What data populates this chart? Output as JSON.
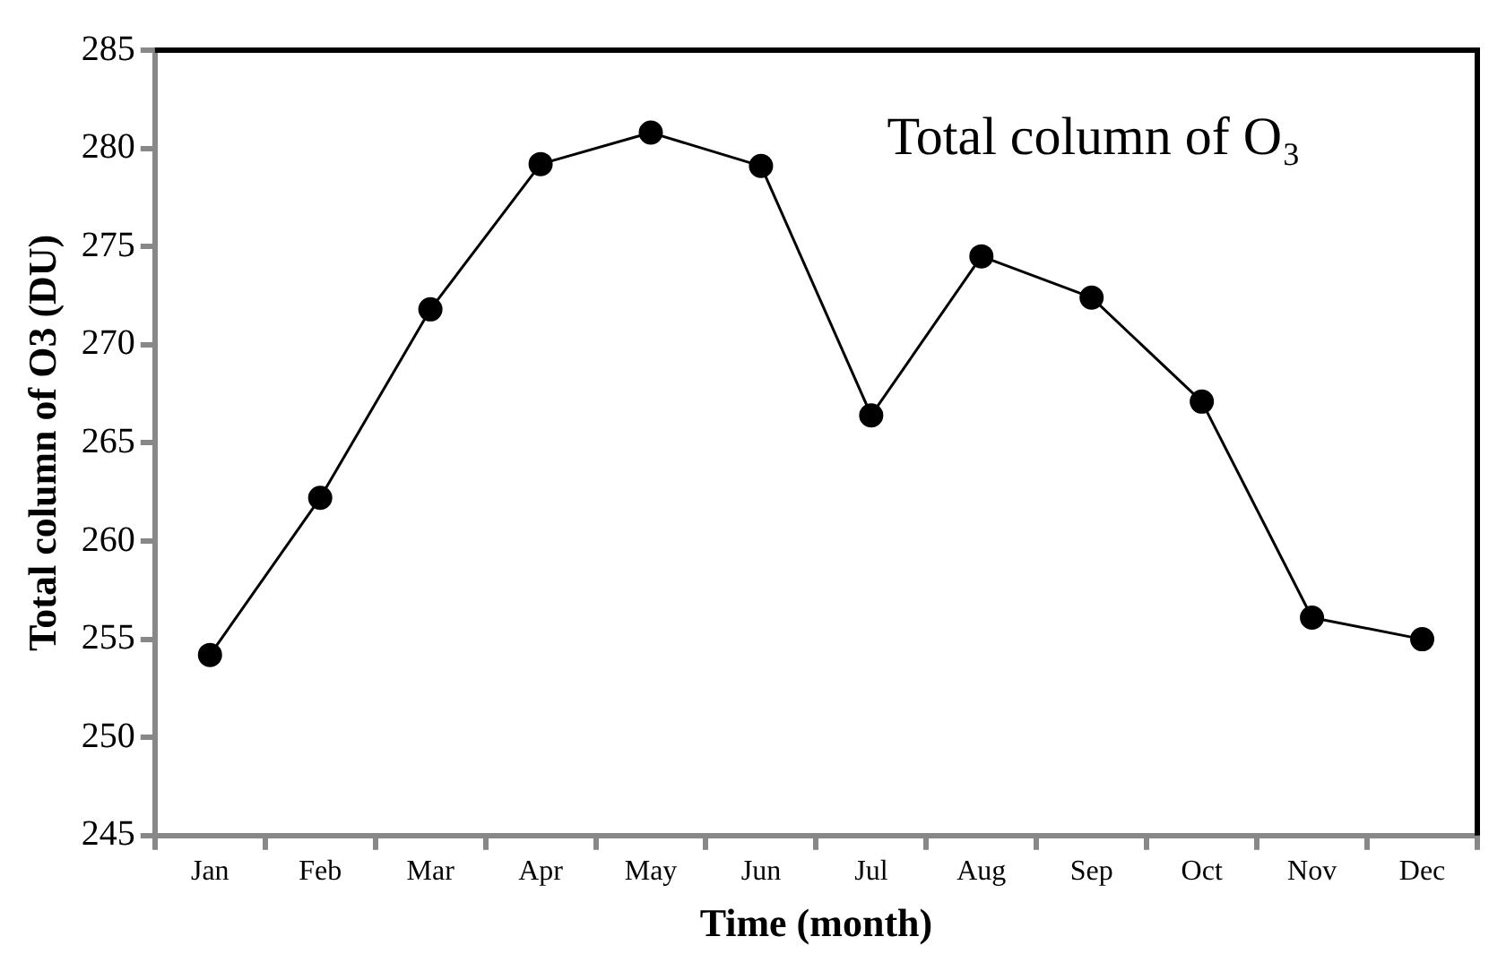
{
  "chart_data": {
    "type": "line",
    "xlabel": "Time (month)",
    "ylabel": "Total column of O3 (DU)",
    "annotations": [
      "Total column of O₃"
    ],
    "categories": [
      "Jan",
      "Feb",
      "Mar",
      "Apr",
      "May",
      "Jun",
      "Jul",
      "Aug",
      "Sep",
      "Oct",
      "Nov",
      "Dec"
    ],
    "series": [
      {
        "color": "#000000",
        "values": [
          254.2,
          262.2,
          271.8,
          279.2,
          280.8,
          279.1,
          266.4,
          274.5,
          272.4,
          267.1,
          256.1,
          255.0
        ]
      }
    ],
    "ylim": [
      245,
      285
    ],
    "yticks": [
      245,
      250,
      255,
      260,
      265,
      270,
      275,
      280,
      285
    ],
    "grid": false,
    "legend": false,
    "marker": "circle",
    "line_style": "solid"
  }
}
